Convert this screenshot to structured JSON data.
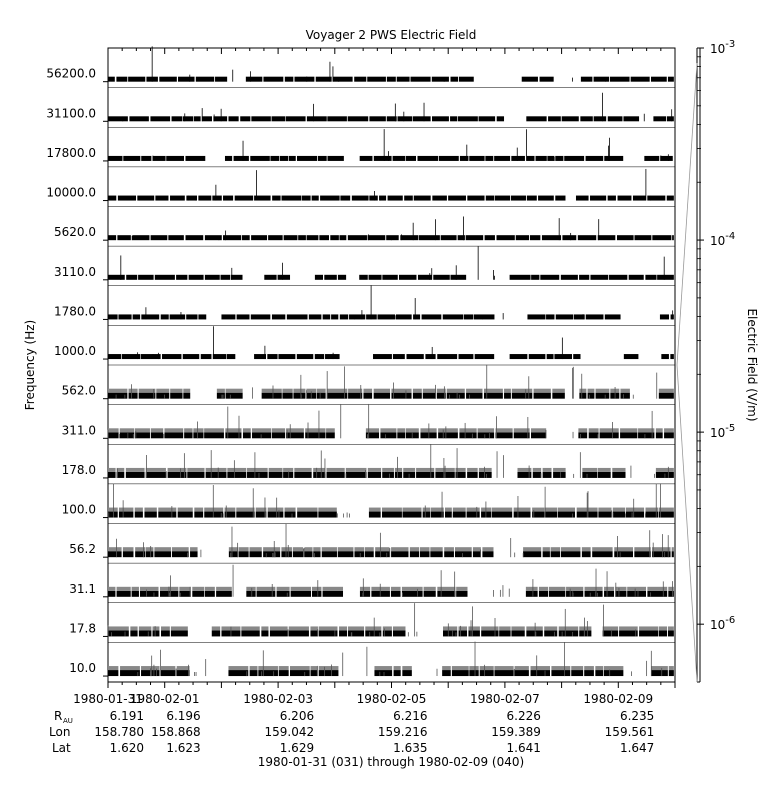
{
  "chart_data": {
    "type": "heatmap",
    "title": "Voyager 2 PWS Electric Field",
    "ylabel": "Frequency (Hz)",
    "colorbar_label": "Electric Field (V/m)",
    "colorbar_scale": "log",
    "colorbar_range": [
      5e-07,
      0.001
    ],
    "colorbar_ticks": [
      {
        "base": "10",
        "exp": "-3",
        "value": 0.001
      },
      {
        "base": "10",
        "exp": "-4",
        "value": 0.0001
      },
      {
        "base": "10",
        "exp": "-5",
        "value": 1e-05
      },
      {
        "base": "10",
        "exp": "-6",
        "value": 1e-06
      }
    ],
    "channels": [
      "56200.0",
      "31100.0",
      "17800.0",
      "10000.0",
      "5620.0",
      "3110.0",
      "1780.0",
      "1000.0",
      "562.0",
      "311.0",
      "178.0",
      "100.0",
      "56.2",
      "31.1",
      "17.8",
      "10.0"
    ],
    "x_range": [
      "1980-01-31",
      "1980-02-10"
    ],
    "x_ticks": [
      "1980-01-31",
      "1980-02-01",
      "1980-02-03",
      "1980-02-05",
      "1980-02-07",
      "1980-02-09"
    ],
    "ephemeris": {
      "labels": {
        "r_main": "R",
        "r_sub": "AU",
        "lon": "Lon",
        "lat": "Lat"
      },
      "r_au": [
        "6.191",
        "6.196",
        "6.206",
        "6.216",
        "6.226",
        "6.235"
      ],
      "lon": [
        "158.780",
        "158.868",
        "159.042",
        "159.216",
        "159.389",
        "159.561"
      ],
      "lat": [
        "1.620",
        "1.623",
        "1.629",
        "1.635",
        "1.641",
        "1.647"
      ]
    },
    "data_gaps_days": [
      [
        1.74,
        1.82
      ],
      [
        2.39,
        2.43
      ],
      [
        3.36,
        3.4
      ],
      [
        4.35,
        4.43
      ],
      [
        5.6,
        5.65
      ],
      [
        6.68,
        6.72
      ],
      [
        7.0,
        7.07
      ],
      [
        8.08,
        8.13
      ],
      [
        8.68,
        8.72
      ],
      [
        9.37,
        9.44
      ]
    ],
    "xlabel": "1980-01-31 (031) through 1980-02-09 (040)"
  }
}
